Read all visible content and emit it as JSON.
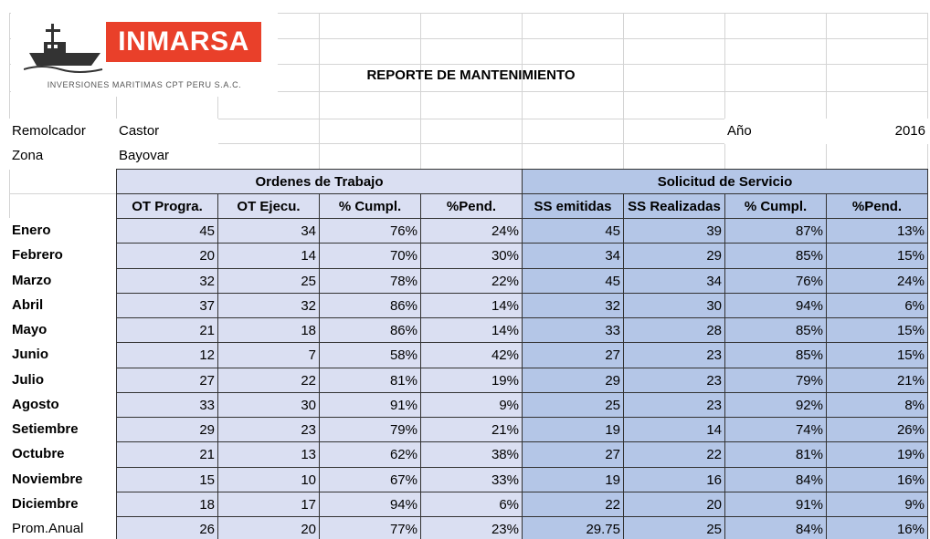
{
  "header": {
    "logo_name": "INMARSA",
    "logo_subtitle": "INVERSIONES MARITIMAS CPT PERU S.A.C.",
    "title": "REPORTE DE MANTENIMIENTO"
  },
  "info": {
    "remolcador_label": "Remolcador",
    "remolcador_value": "Castor",
    "zona_label": "Zona",
    "zona_value": "Bayovar",
    "year_label": "Año",
    "year_value": "2016"
  },
  "table": {
    "groups": [
      "Ordenes de Trabajo",
      "Solicitud de Servicio"
    ],
    "columns": [
      "OT Progra.",
      "OT Ejecu.",
      "% Cumpl.",
      "%Pend.",
      "SS emitidas",
      "SS Realizadas",
      "% Cumpl.",
      "%Pend."
    ],
    "rows": [
      {
        "label": "Enero",
        "cells": [
          "45",
          "34",
          "76%",
          "24%",
          "45",
          "39",
          "87%",
          "13%"
        ]
      },
      {
        "label": "Febrero",
        "cells": [
          "20",
          "14",
          "70%",
          "30%",
          "34",
          "29",
          "85%",
          "15%"
        ]
      },
      {
        "label": "Marzo",
        "cells": [
          "32",
          "25",
          "78%",
          "22%",
          "45",
          "34",
          "76%",
          "24%"
        ]
      },
      {
        "label": "Abril",
        "cells": [
          "37",
          "32",
          "86%",
          "14%",
          "32",
          "30",
          "94%",
          "6%"
        ]
      },
      {
        "label": "Mayo",
        "cells": [
          "21",
          "18",
          "86%",
          "14%",
          "33",
          "28",
          "85%",
          "15%"
        ]
      },
      {
        "label": "Junio",
        "cells": [
          "12",
          "7",
          "58%",
          "42%",
          "27",
          "23",
          "85%",
          "15%"
        ]
      },
      {
        "label": "Julio",
        "cells": [
          "27",
          "22",
          "81%",
          "19%",
          "29",
          "23",
          "79%",
          "21%"
        ]
      },
      {
        "label": "Agosto",
        "cells": [
          "33",
          "30",
          "91%",
          "9%",
          "25",
          "23",
          "92%",
          "8%"
        ]
      },
      {
        "label": "Setiembre",
        "cells": [
          "29",
          "23",
          "79%",
          "21%",
          "19",
          "14",
          "74%",
          "26%"
        ]
      },
      {
        "label": "Octubre",
        "cells": [
          "21",
          "13",
          "62%",
          "38%",
          "27",
          "22",
          "81%",
          "19%"
        ]
      },
      {
        "label": "Noviembre",
        "cells": [
          "15",
          "10",
          "67%",
          "33%",
          "19",
          "16",
          "84%",
          "16%"
        ]
      },
      {
        "label": "Diciembre",
        "cells": [
          "18",
          "17",
          "94%",
          "6%",
          "22",
          "20",
          "91%",
          "9%"
        ]
      },
      {
        "label": "Prom.Anual",
        "cells": [
          "26",
          "20",
          "77%",
          "23%",
          "29.75",
          "25",
          "84%",
          "16%"
        ]
      }
    ]
  }
}
